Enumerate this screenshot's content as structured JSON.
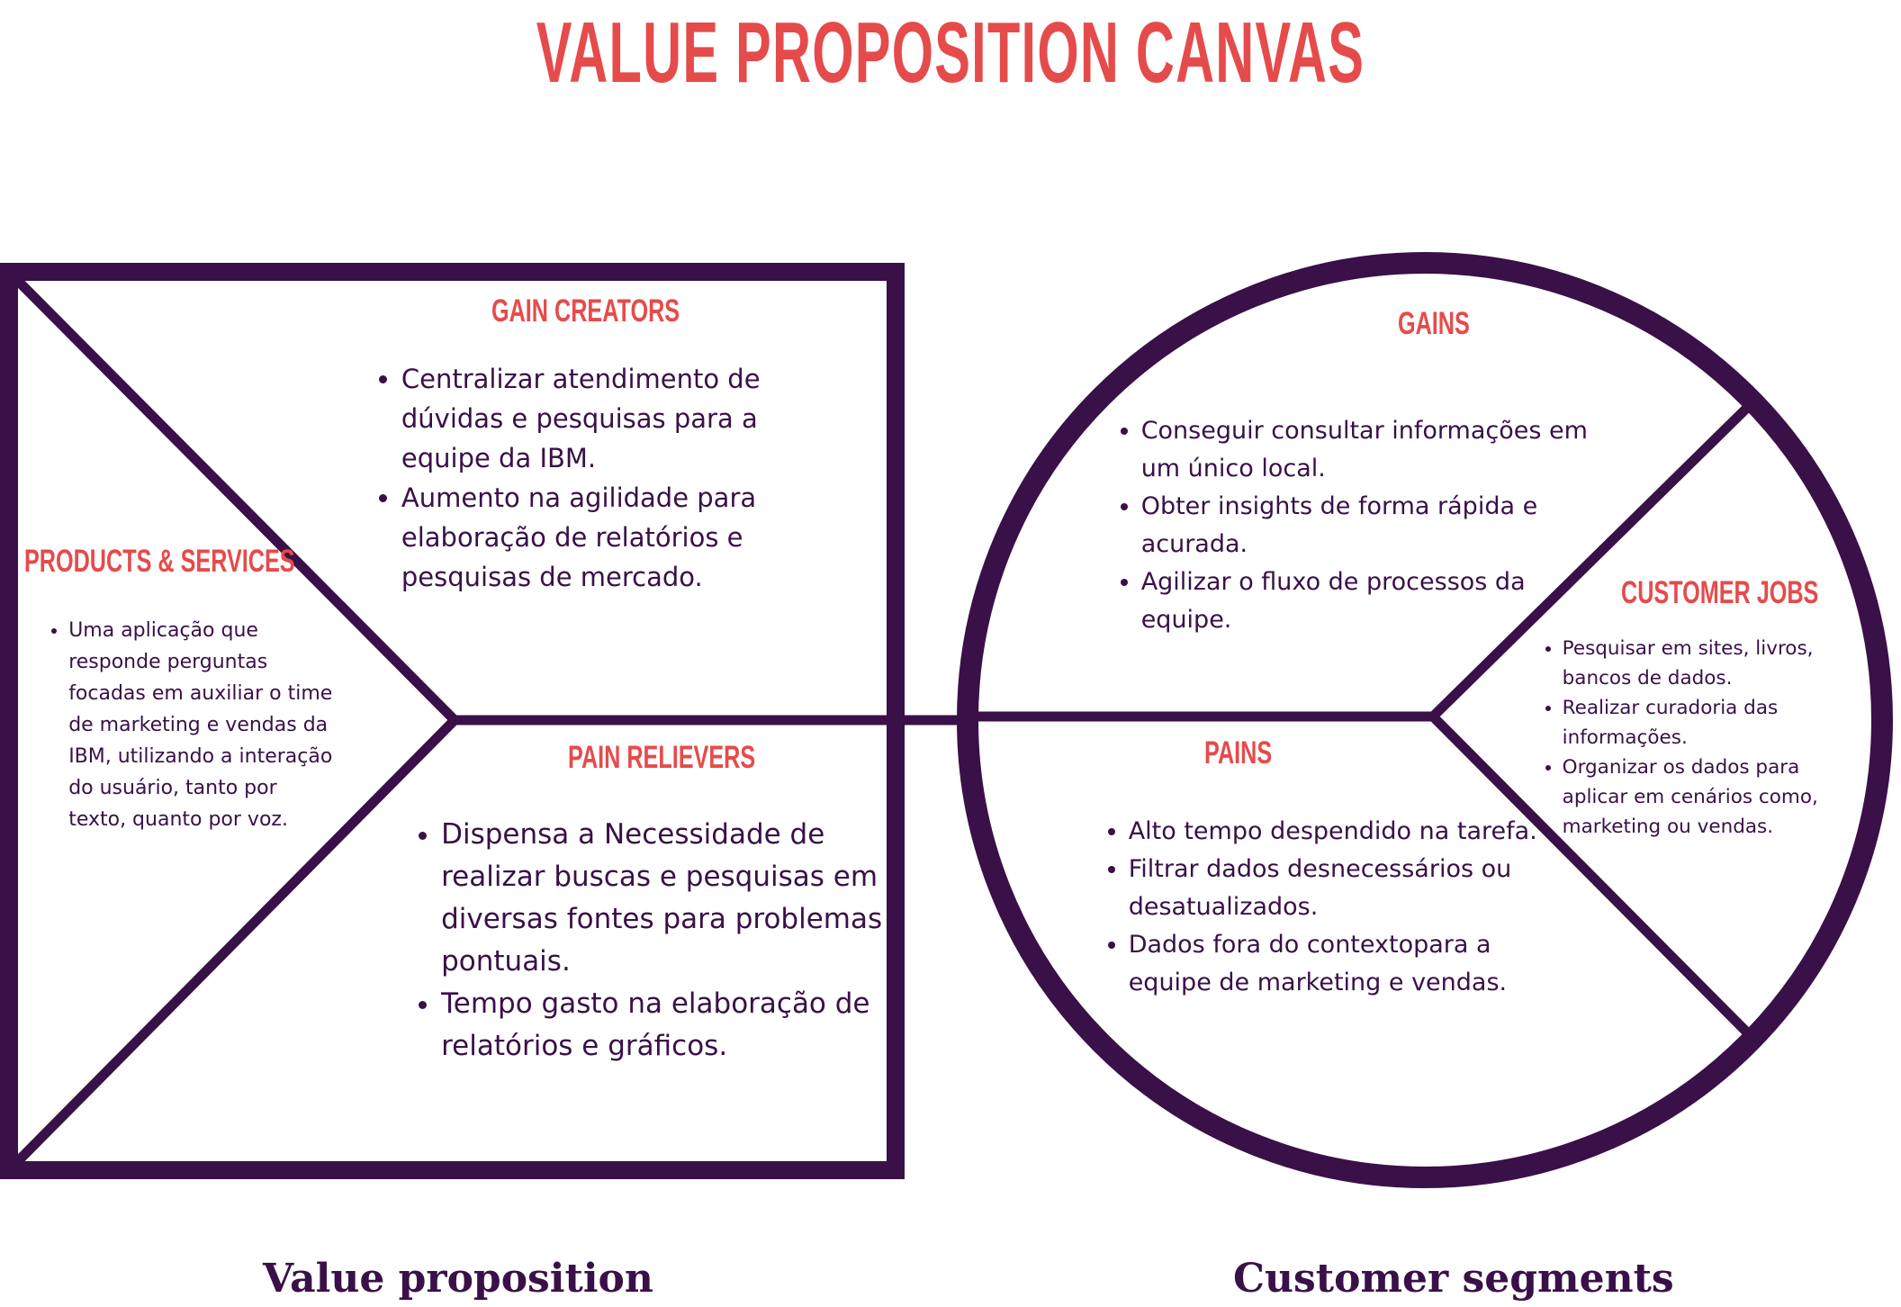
{
  "title": "VALUE PROPOSITION CANVAS",
  "colors": {
    "accent": "#e64b4b",
    "frame": "#3a1048",
    "text": "#3a1048"
  },
  "value_proposition": {
    "label": "Value proposition",
    "gain_creators": {
      "title": "GAIN CREATORS",
      "items": [
        "Centralizar atendimento de dúvidas e pesquisas para a equipe da IBM.",
        "Aumento na agilidade para elaboração de relatórios e pesquisas de mercado."
      ]
    },
    "products_services": {
      "title": "PRODUCTS & SERVICES",
      "items": [
        "Uma aplicação que responde perguntas focadas em auxiliar o time de marketing e vendas da IBM, utilizando a interação do usuário, tanto por texto, quanto por voz."
      ]
    },
    "pain_relievers": {
      "title": "PAIN RELIEVERS",
      "items": [
        "Dispensa a Necessidade de realizar buscas e pesquisas em diversas fontes para problemas pontuais.",
        "Tempo gasto na elaboração de relatórios e gráficos."
      ]
    }
  },
  "customer_segments": {
    "label": "Customer segments",
    "gains": {
      "title": "GAINS",
      "items": [
        "Conseguir consultar informações em um único local.",
        "Obter insights de forma rápida e acurada.",
        "Agilizar o fluxo de processos da equipe."
      ]
    },
    "customer_jobs": {
      "title": "CUSTOMER JOBS",
      "items": [
        "Pesquisar em sites, livros, bancos de dados.",
        "Realizar curadoria das informações.",
        "Organizar os dados para aplicar em cenários como, marketing ou vendas."
      ]
    },
    "pains": {
      "title": "PAINS",
      "items": [
        "Alto tempo despendido na tarefa.",
        "Filtrar dados desnecessários ou desatualizados.",
        "Dados fora do contextopara a equipe de marketing e vendas."
      ]
    }
  }
}
